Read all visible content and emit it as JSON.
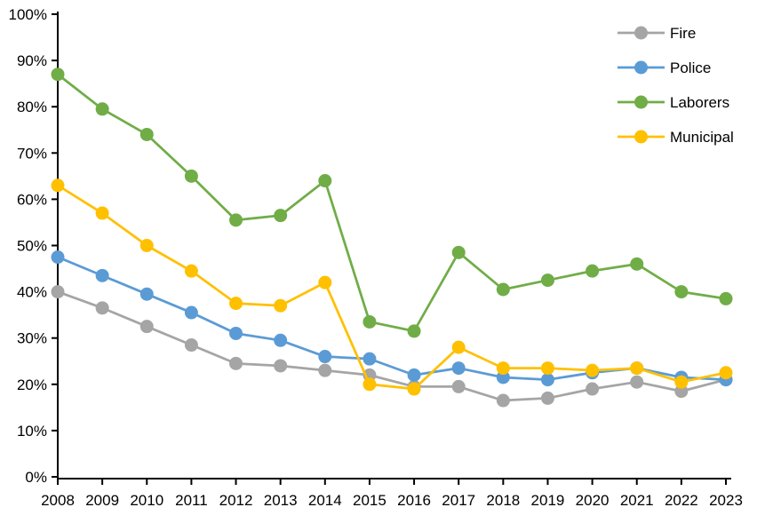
{
  "chart_data": {
    "type": "line",
    "title": "",
    "xlabel": "",
    "ylabel": "",
    "grid": false,
    "background_color": "#ffffff",
    "axis_color": "#000000",
    "x_categories": [
      "2008",
      "2009",
      "2010",
      "2011",
      "2012",
      "2013",
      "2014",
      "2015",
      "2016",
      "2017",
      "2018",
      "2019",
      "2020",
      "2021",
      "2022",
      "2023"
    ],
    "y_axis": {
      "min": 0,
      "max": 100,
      "step": 10,
      "unit": "%",
      "tick_labels": [
        "0%",
        "10%",
        "20%",
        "30%",
        "40%",
        "50%",
        "60%",
        "70%",
        "80%",
        "90%",
        "100%"
      ]
    },
    "legend": {
      "position": "top-right",
      "entries": [
        "Fire",
        "Police",
        "Laborers",
        "Municipal"
      ]
    },
    "series": [
      {
        "name": "Fire",
        "color": "#A5A5A5",
        "values": [
          40,
          36.5,
          32.5,
          28.5,
          24.5,
          24,
          23,
          22,
          19.5,
          19.5,
          16.5,
          17,
          19,
          20.5,
          18.5,
          21
        ]
      },
      {
        "name": "Police",
        "color": "#5B9BD5",
        "values": [
          47.5,
          43.5,
          39.5,
          35.5,
          31,
          29.5,
          26,
          25.5,
          22,
          23.5,
          21.5,
          21,
          22.5,
          23.5,
          21.5,
          21
        ]
      },
      {
        "name": "Laborers",
        "color": "#70AD47",
        "values": [
          87,
          79.5,
          74,
          65,
          55.5,
          56.5,
          64,
          33.5,
          31.5,
          48.5,
          40.5,
          42.5,
          44.5,
          46,
          40,
          38.5
        ]
      },
      {
        "name": "Municipal",
        "color": "#FFC000",
        "values": [
          63,
          57,
          50,
          44.5,
          37.5,
          37,
          42,
          20,
          19,
          28,
          23.5,
          23.5,
          23,
          23.5,
          20.5,
          22.5
        ]
      }
    ]
  }
}
